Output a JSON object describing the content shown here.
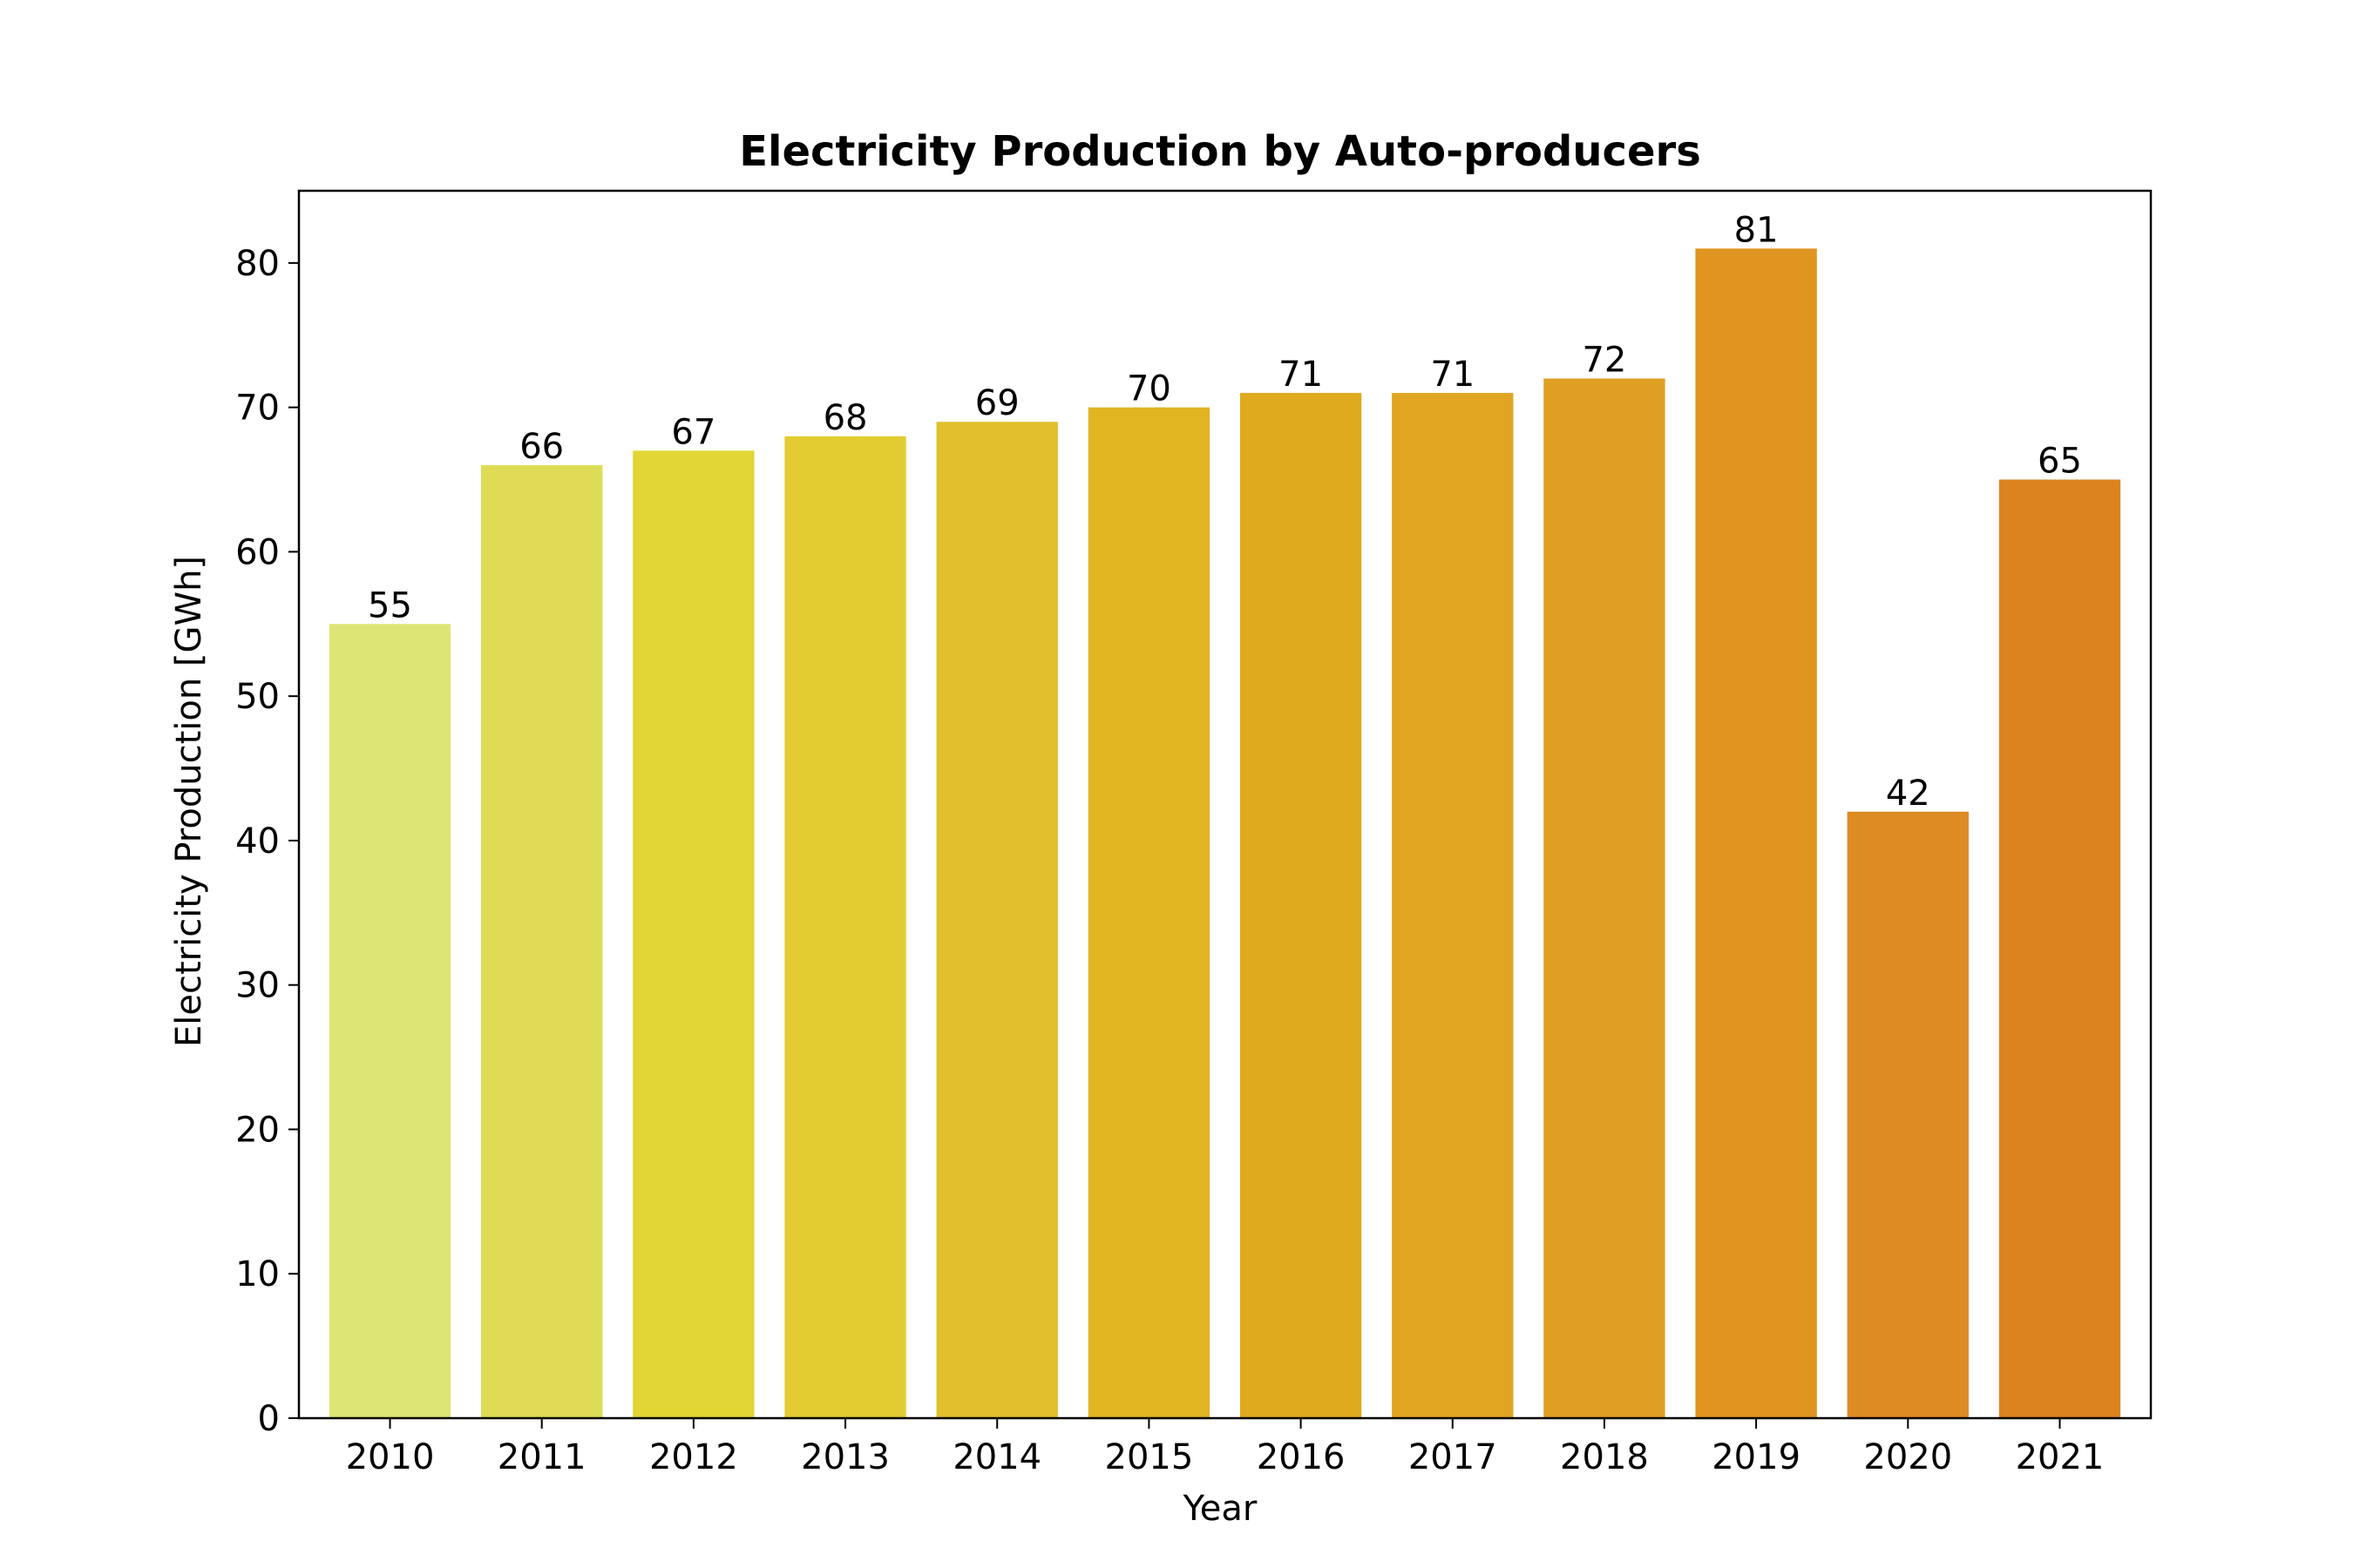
{
  "chart_data": {
    "type": "bar",
    "title": "Electricity Production by Auto-producers",
    "xlabel": "Year",
    "ylabel": "Electricity Production [GWh]",
    "categories": [
      "2010",
      "2011",
      "2012",
      "2013",
      "2014",
      "2015",
      "2016",
      "2017",
      "2018",
      "2019",
      "2020",
      "2021"
    ],
    "values": [
      55,
      66,
      67,
      68,
      69,
      70,
      71,
      71,
      72,
      81,
      42,
      65
    ],
    "data_labels": [
      "55",
      "66",
      "67",
      "68",
      "69",
      "70",
      "71",
      "71",
      "72",
      "81",
      "42",
      "65"
    ],
    "colors": [
      "#dce574",
      "#dedc55",
      "#e1d633",
      "#e3cc32",
      "#e2bf2c",
      "#e1b422",
      "#dfaa1e",
      "#e0a621",
      "#df9f23",
      "#df9520",
      "#dd8b23",
      "#dc8320"
    ],
    "yticks": [
      0,
      10,
      20,
      30,
      40,
      50,
      60,
      70,
      80
    ],
    "ylim": [
      0,
      85
    ],
    "grid": false,
    "legend": "none"
  }
}
